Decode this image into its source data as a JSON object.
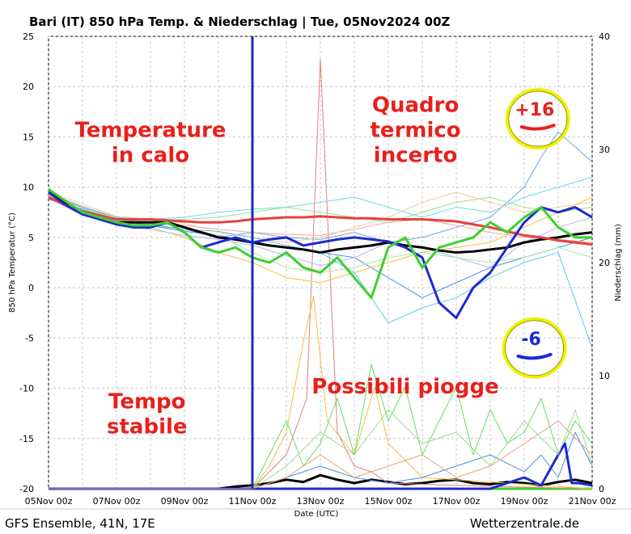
{
  "title": "Bari  (IT)  850 hPa Temp. & Niederschlag | Tue, 05Nov2024 00Z",
  "footer_left": "GFS Ensemble, 41N, 17E",
  "footer_right": "Wetterzentrale.de",
  "chart_data": {
    "type": "line",
    "xlabel": "Date (UTC)",
    "ylabel_left": "850 hPa Temperatur (°C)",
    "ylabel_right": "Niederschlag (mm)",
    "ylim_left": [
      -20,
      25
    ],
    "ylim_right": [
      0,
      40
    ],
    "yticks_left": [
      -20,
      -15,
      -10,
      -5,
      0,
      5,
      10,
      15,
      20,
      25
    ],
    "yticks_right": [
      0,
      10,
      20,
      30,
      40
    ],
    "xlim_days": [
      0,
      16
    ],
    "xticks": [
      "05Nov 00z",
      "07Nov 00z",
      "09Nov 00z",
      "11Nov 00z",
      "13Nov 00z",
      "15Nov 00z",
      "17Nov 00z",
      "19Nov 00z",
      "21Nov 00z"
    ],
    "grid": true,
    "vline_day": 6,
    "annotations": [
      {
        "text_lines": [
          "Temperature",
          "in calo"
        ],
        "day": 3.0,
        "temp": 15.0
      },
      {
        "text_lines": [
          "Quadro",
          "termico",
          "incerto"
        ],
        "day": 10.8,
        "temp": 17.5
      },
      {
        "text_lines": [
          "Tempo",
          "stabile"
        ],
        "day": 2.9,
        "temp": -12.0
      },
      {
        "text_lines": [
          "Possibili piogge"
        ],
        "day": 10.5,
        "temp": -10.5
      }
    ],
    "circles": [
      {
        "label": "+16",
        "color": "#e8201c",
        "day": 14.4,
        "temp": 16.8
      },
      {
        "label": "-6",
        "color": "#1a2bd8",
        "day": 14.3,
        "temp": -6.0
      }
    ],
    "series": [
      {
        "role": "mean",
        "color": "#000000",
        "width": 3,
        "x": [
          0,
          0.5,
          1,
          1.5,
          2,
          2.5,
          3,
          3.5,
          4,
          4.5,
          5,
          5.5,
          6,
          6.5,
          7,
          7.5,
          8,
          8.5,
          9,
          9.5,
          10,
          10.5,
          11,
          11.5,
          12,
          12.5,
          13,
          13.5,
          14,
          14.5,
          15,
          15.5,
          16
        ],
        "y": [
          9.5,
          8.5,
          7.5,
          7,
          6.5,
          6.5,
          6.5,
          6.5,
          6,
          5.5,
          5,
          4.8,
          4.5,
          4.2,
          4,
          3.8,
          3.5,
          3.8,
          4,
          4.2,
          4.5,
          4.2,
          4,
          3.7,
          3.5,
          3.6,
          3.8,
          4,
          4.5,
          4.8,
          5,
          5.3,
          5.5
        ]
      },
      {
        "role": "control",
        "color": "#e84040",
        "width": 3,
        "x": [
          0,
          0.5,
          1,
          1.5,
          2,
          2.5,
          3,
          3.5,
          4,
          4.5,
          5,
          5.5,
          6,
          6.5,
          7,
          7.5,
          8,
          8.5,
          9,
          9.5,
          10,
          10.5,
          11,
          11.5,
          12,
          12.5,
          13,
          13.5,
          14,
          14.5,
          15,
          15.5,
          16
        ],
        "y": [
          9,
          8.2,
          7.6,
          7.2,
          6.8,
          6.8,
          6.8,
          6.7,
          6.6,
          6.5,
          6.5,
          6.6,
          6.8,
          6.9,
          7,
          7,
          7.1,
          7,
          6.9,
          6.9,
          6.8,
          6.8,
          6.8,
          6.7,
          6.6,
          6.3,
          6,
          5.6,
          5.2,
          5,
          4.7,
          4.5,
          4.3
        ]
      },
      {
        "role": "member",
        "color": "#1e2ad0",
        "width": 3,
        "x": [
          0,
          0.5,
          1,
          1.5,
          2,
          2.5,
          3,
          3.5,
          4,
          4.5,
          5,
          5.5,
          6,
          6.5,
          7,
          7.5,
          8,
          8.5,
          9,
          9.5,
          10,
          10.5,
          11,
          11.5,
          12,
          12.5,
          13,
          13.5,
          14,
          14.5,
          15,
          15.5,
          16
        ],
        "y": [
          9.5,
          8.2,
          7.3,
          6.8,
          6.3,
          6,
          6,
          6.5,
          5.5,
          4,
          4.5,
          5,
          4.5,
          4.8,
          5,
          4.2,
          4.5,
          4.8,
          5,
          4.8,
          4.6,
          4,
          3,
          -1.5,
          -3,
          0,
          1.5,
          4,
          6.5,
          8,
          7.5,
          8,
          7
        ]
      },
      {
        "role": "member",
        "color": "#3ecf2e",
        "width": 3,
        "x": [
          0,
          0.5,
          1,
          1.5,
          2,
          2.5,
          3,
          3.5,
          4,
          4.5,
          5,
          5.5,
          6,
          6.5,
          7,
          7.5,
          8,
          8.5,
          9,
          9.5,
          10,
          10.5,
          11,
          11.5,
          12,
          12.5,
          13,
          13.5,
          14,
          14.5,
          15,
          15.5,
          16
        ],
        "y": [
          9.8,
          8.6,
          7.5,
          7,
          6.5,
          6.2,
          6.2,
          6.5,
          5.5,
          4,
          3.5,
          4,
          3,
          2.5,
          3.5,
          2,
          1.5,
          3,
          1,
          -1,
          4,
          5,
          2,
          4,
          4.5,
          5,
          6.5,
          5.5,
          7,
          8,
          6,
          5,
          5
        ]
      },
      {
        "role": "member",
        "color": "#6fa8dc",
        "width": 1,
        "x": [
          0,
          1,
          2,
          3,
          4,
          5,
          6,
          7,
          8,
          9,
          10,
          11,
          12,
          13,
          14,
          14.5,
          15,
          15.5,
          16
        ],
        "y": [
          9,
          7.5,
          6.5,
          6.3,
          5.8,
          5,
          5.5,
          5,
          4.8,
          5.5,
          4.5,
          5,
          6,
          7,
          10,
          13,
          15.5,
          14,
          12.5
        ]
      },
      {
        "role": "member",
        "color": "#4a90e2",
        "width": 1,
        "x": [
          0,
          1,
          2,
          3,
          4,
          5,
          6,
          7,
          8,
          9,
          10,
          11,
          12,
          13,
          14,
          15,
          16
        ],
        "y": [
          8.8,
          7.8,
          6.8,
          6.2,
          5.6,
          5.2,
          4.5,
          4,
          3.5,
          3,
          1,
          -1,
          0.5,
          2,
          3,
          4,
          5
        ]
      },
      {
        "role": "member",
        "color": "#f0c040",
        "width": 1,
        "x": [
          0,
          1,
          2,
          3,
          4,
          5,
          6,
          7,
          8,
          9,
          10,
          11,
          12,
          13,
          14,
          15,
          16
        ],
        "y": [
          9.2,
          8,
          6.8,
          6,
          5,
          3.5,
          2.5,
          1,
          0.5,
          1.5,
          2.5,
          3.5,
          4,
          4.5,
          6,
          7.5,
          9
        ]
      },
      {
        "role": "member",
        "color": "#f2a6a6",
        "width": 1,
        "x": [
          0,
          1,
          2,
          3,
          4,
          5,
          6,
          7,
          8,
          9,
          10,
          11,
          12,
          13,
          14,
          15,
          16
        ],
        "y": [
          9.4,
          8.1,
          7,
          6.4,
          6.2,
          5.8,
          5.5,
          5.3,
          5.2,
          5.8,
          6.5,
          6.8,
          6.2,
          5.5,
          5,
          4.8,
          4.5
        ]
      },
      {
        "role": "member",
        "color": "#9adf8a",
        "width": 1,
        "x": [
          0,
          1,
          2,
          3,
          4,
          5,
          6,
          7,
          8,
          9,
          10,
          11,
          12,
          13,
          14,
          15,
          16
        ],
        "y": [
          9.1,
          7.6,
          6.7,
          6.6,
          6.8,
          7,
          7.5,
          8,
          7.5,
          7,
          6.5,
          7.5,
          8.5,
          9,
          8,
          7.5,
          8
        ]
      },
      {
        "role": "member",
        "color": "#66dde0",
        "width": 1,
        "x": [
          0,
          1,
          2,
          3,
          4,
          5,
          6,
          7,
          8,
          9,
          10,
          11,
          12,
          13,
          14,
          15,
          16
        ],
        "y": [
          9.3,
          7.9,
          7,
          6.8,
          7,
          7.5,
          7.8,
          8,
          8.5,
          9,
          8,
          7,
          8,
          7.5,
          9,
          10,
          11
        ]
      },
      {
        "role": "member",
        "color": "#b0b8f0",
        "width": 1,
        "x": [
          0,
          1,
          2,
          3,
          4,
          5,
          6,
          7,
          8,
          9,
          10,
          11,
          12,
          13,
          14,
          15,
          16
        ],
        "y": [
          9,
          7.4,
          6.2,
          5.8,
          5.2,
          4.8,
          4.2,
          3.2,
          2.2,
          3,
          4.5,
          4,
          3,
          2,
          4.5,
          6,
          7
        ]
      },
      {
        "role": "member",
        "color": "#f2c7a0",
        "width": 1,
        "x": [
          0,
          1,
          2,
          3,
          4,
          5,
          6,
          7,
          8,
          9,
          10,
          11,
          12,
          13,
          14,
          15,
          16
        ],
        "y": [
          9.6,
          8.3,
          7.1,
          6.8,
          6.4,
          5.5,
          5,
          4.5,
          5,
          6,
          7,
          8.5,
          9.5,
          8.5,
          7.5,
          8,
          8.5
        ]
      },
      {
        "role": "member",
        "color": "#a8e6a0",
        "width": 1,
        "x": [
          0,
          1,
          2,
          3,
          4,
          5,
          6,
          7,
          8,
          9,
          10,
          11,
          12,
          13,
          14,
          15,
          16
        ],
        "y": [
          9.2,
          7.7,
          6.9,
          6.5,
          6,
          5.2,
          3.5,
          2,
          1.5,
          2,
          3,
          3.5,
          3,
          2.5,
          3,
          4,
          3
        ]
      },
      {
        "role": "member",
        "color": "#5fc8f0",
        "width": 1,
        "x": [
          0,
          1,
          2,
          3,
          4,
          5,
          6,
          7,
          8,
          9,
          10,
          11,
          12,
          13,
          14,
          15,
          16
        ],
        "y": [
          9.5,
          8,
          7,
          6.2,
          5.8,
          5.6,
          5,
          4.2,
          3.5,
          1.5,
          -3.5,
          -2,
          -1,
          1,
          2.5,
          3.5,
          -6
        ]
      }
    ],
    "precip_series": [
      {
        "color": "#000000",
        "width": 3,
        "x": [
          0,
          5,
          5.5,
          6,
          6.5,
          7,
          7.5,
          8,
          8.5,
          9,
          9.5,
          10,
          10.5,
          11,
          11.5,
          12,
          12.5,
          13,
          13.5,
          14,
          14.5,
          15,
          15.5,
          16
        ],
        "y": [
          0,
          0,
          0.2,
          0.3,
          0.5,
          0.8,
          0.6,
          1.2,
          0.8,
          0.5,
          0.8,
          0.6,
          0.4,
          0.5,
          0.7,
          0.8,
          0.5,
          0.4,
          0.6,
          0.5,
          0.3,
          0.6,
          0.8,
          0.5
        ]
      },
      {
        "color": "#3ecf2e",
        "width": 3,
        "x": [
          0,
          16
        ],
        "y": [
          0,
          0
        ]
      },
      {
        "color": "#e08080",
        "width": 1,
        "x": [
          0,
          6,
          7,
          7.6,
          8,
          8.5,
          9,
          9.5,
          10,
          12,
          16
        ],
        "y": [
          0,
          0,
          3,
          8,
          38,
          5,
          2,
          1.5,
          0.5,
          0.3,
          0
        ]
      },
      {
        "color": "#f0c040",
        "width": 1,
        "x": [
          0,
          6,
          6.5,
          7,
          7.5,
          7.8,
          8.2,
          9,
          9.6,
          10,
          11,
          16
        ],
        "y": [
          0,
          0,
          2,
          5,
          13,
          17,
          6,
          3,
          9,
          4,
          1,
          0
        ]
      },
      {
        "color": "#66dd66",
        "width": 1,
        "x": [
          0,
          6,
          6.5,
          7,
          7.5,
          8,
          8.5,
          9,
          9.5,
          10,
          10.5,
          11,
          11.5,
          12,
          12.5,
          13,
          13.5,
          14,
          14.5,
          15,
          15.5,
          16
        ],
        "y": [
          0,
          0,
          3,
          6,
          2,
          4,
          8,
          3,
          11,
          6,
          9,
          3,
          6,
          9,
          3,
          7,
          4,
          5,
          8,
          3,
          6,
          4
        ]
      },
      {
        "color": "#4a90e2",
        "width": 1,
        "x": [
          0,
          6,
          7,
          8,
          9,
          10,
          11,
          12,
          13,
          14,
          14.5,
          15,
          15.5,
          16
        ],
        "y": [
          0,
          0,
          1,
          2,
          1,
          0.5,
          1,
          2,
          3,
          1.5,
          3,
          1,
          5,
          2
        ]
      },
      {
        "color": "#1e2ad0",
        "width": 3,
        "x": [
          0,
          13,
          13.5,
          14,
          14.5,
          15,
          15.2,
          15.4,
          15.6,
          16
        ],
        "y": [
          0,
          0,
          0.5,
          1,
          0.3,
          3,
          4,
          0.5,
          0.5,
          0.3
        ]
      },
      {
        "color": "#9adf8a",
        "width": 1,
        "x": [
          0,
          6,
          7,
          8,
          9,
          10,
          11,
          12,
          13,
          14,
          15,
          15.5,
          16
        ],
        "y": [
          0,
          0,
          2,
          5,
          3,
          7,
          4,
          5,
          2,
          6,
          3,
          7,
          2
        ]
      },
      {
        "color": "#e8a070",
        "width": 1,
        "x": [
          0,
          6,
          7,
          8,
          9,
          10,
          11,
          12,
          13,
          14,
          15,
          16
        ],
        "y": [
          0,
          0,
          1,
          3,
          1,
          2,
          3,
          1,
          2,
          4,
          6,
          3
        ]
      }
    ]
  }
}
